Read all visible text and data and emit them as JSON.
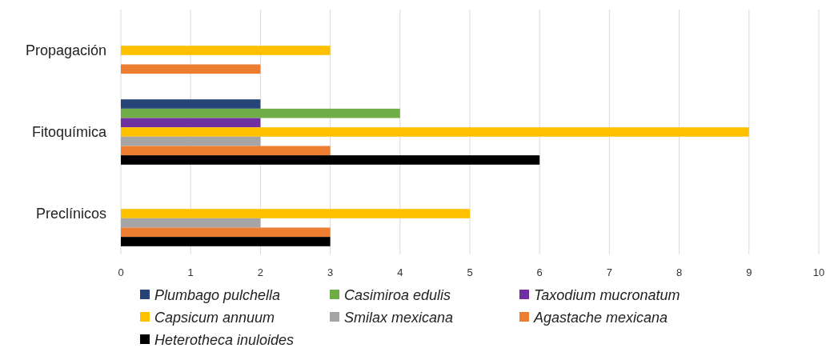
{
  "chart_data": {
    "type": "bar",
    "orientation": "horizontal",
    "categories": [
      "Propagación",
      "Fitoquímica",
      "Preclínicos"
    ],
    "series": [
      {
        "name": "Plumbago pulchella",
        "color": "#264478",
        "values": [
          null,
          2,
          null
        ]
      },
      {
        "name": "Casimiroa edulis",
        "color": "#70ad47",
        "values": [
          null,
          4,
          null
        ]
      },
      {
        "name": "Taxodium mucronatum",
        "color": "#7030a0",
        "values": [
          null,
          2,
          null
        ]
      },
      {
        "name": "Capsicum annuum",
        "color": "#ffc000",
        "values": [
          3,
          9,
          5
        ]
      },
      {
        "name": "Smilax mexicana",
        "color": "#a5a5a5",
        "values": [
          null,
          2,
          2
        ]
      },
      {
        "name": "Agastache mexicana",
        "color": "#ed7d31",
        "values": [
          2,
          3,
          3
        ]
      },
      {
        "name": "Heterotheca inuloides",
        "color": "#000000",
        "values": [
          null,
          6,
          3
        ]
      }
    ],
    "xlim": [
      0,
      10
    ],
    "xticks": [
      0,
      1,
      2,
      3,
      4,
      5,
      6,
      7,
      8,
      9,
      10
    ],
    "grid": "x",
    "legend": "bottom"
  }
}
